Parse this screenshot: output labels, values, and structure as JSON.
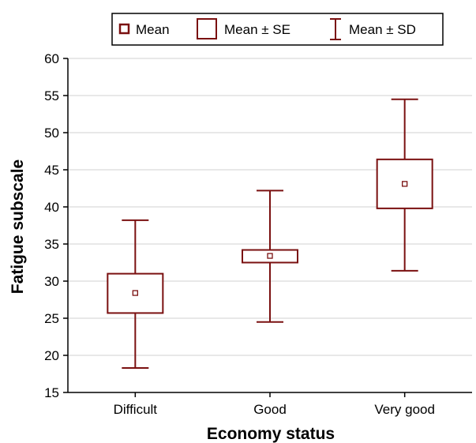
{
  "chart_data": {
    "type": "box",
    "title": "",
    "xlabel": "Economy status",
    "ylabel": "Fatigue subscale",
    "ylim": [
      15,
      60
    ],
    "yticks": [
      15,
      20,
      25,
      30,
      35,
      40,
      45,
      50,
      55,
      60
    ],
    "grid": true,
    "legend_position": "top",
    "legend": {
      "mean": "Mean",
      "se": "Mean ± SE",
      "sd": "Mean ± SD"
    },
    "color": "#7a1010",
    "categories": [
      "Difficult",
      "Good",
      "Very good"
    ],
    "mean": [
      28.4,
      33.4,
      43.1
    ],
    "se_low": [
      25.7,
      32.5,
      39.8
    ],
    "se_high": [
      31.0,
      34.2,
      46.4
    ],
    "sd_low": [
      18.3,
      24.5,
      31.4
    ],
    "sd_high": [
      38.2,
      42.2,
      54.5
    ]
  }
}
